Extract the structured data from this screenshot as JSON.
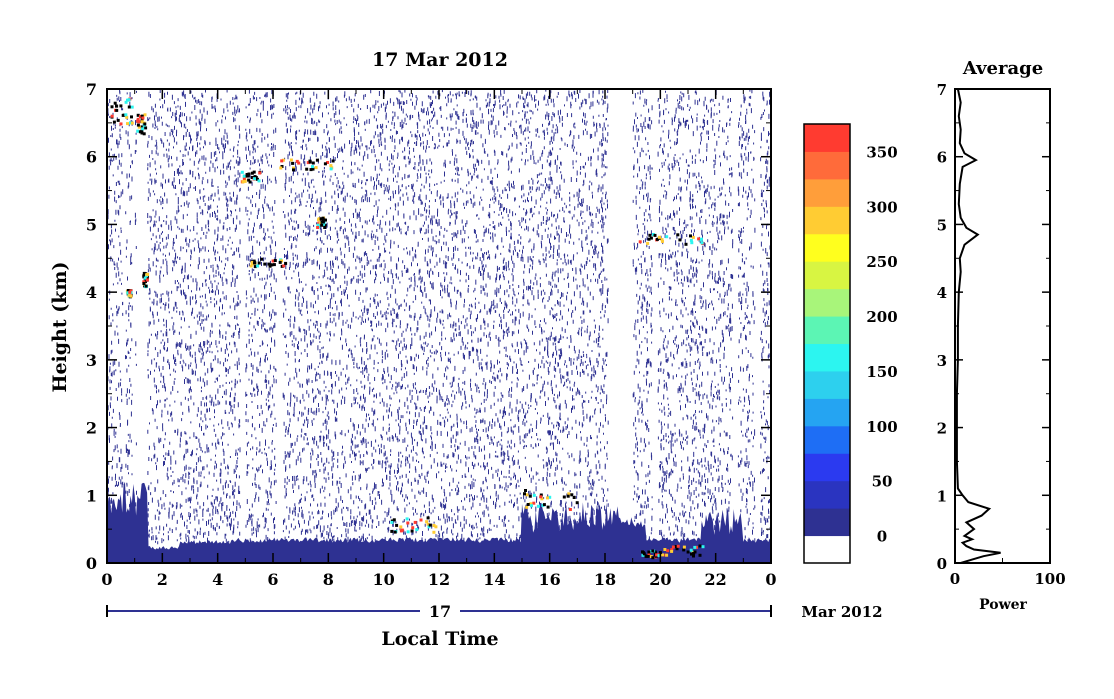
{
  "chart_data": [
    {
      "type": "heatmap",
      "title": "17 Mar 2012",
      "xlabel": "Local Time",
      "ylabel": "Height (km)",
      "xlim": [
        0,
        24
      ],
      "ylim": [
        0,
        7
      ],
      "x_ticks": [
        "0",
        "2",
        "4",
        "6",
        "8",
        "10",
        "12",
        "14",
        "16",
        "18",
        "20",
        "22",
        "0"
      ],
      "y_ticks": [
        "0",
        "1",
        "2",
        "3",
        "4",
        "5",
        "6",
        "7"
      ],
      "date_axis": {
        "day": "17",
        "month_year": "Mar 2012"
      },
      "colorbar": {
        "labels": [
          "0",
          "50",
          "100",
          "150",
          "200",
          "250",
          "300",
          "350"
        ],
        "colors": [
          "#ffffff",
          "#2e3192",
          "#2a34c0",
          "#2b3af0",
          "#1e6ef5",
          "#25a4f2",
          "#2dd0ee",
          "#2cf5f0",
          "#5cf5b4",
          "#a8f57a",
          "#d8f542",
          "#ffff1e",
          "#ffcc33",
          "#ff9e3a",
          "#ff6b3a",
          "#ff3b30"
        ],
        "range": [
          0,
          375
        ]
      },
      "features": [
        {
          "label": "surface layer",
          "x_range": [
            0,
            24
          ],
          "height_top": 0.3
        },
        {
          "label": "cloud layer",
          "x_range": [
            7.2,
            8.2
          ],
          "height": 5.95
        },
        {
          "label": "cloud layer",
          "x_range": [
            19,
            22
          ],
          "height": 4.85
        },
        {
          "label": "boundary layer top",
          "x_range": [
            15,
            17
          ],
          "height": 0.95
        }
      ]
    },
    {
      "type": "line",
      "title": "Average",
      "xlabel": "Power",
      "xlim": [
        0,
        100
      ],
      "ylim": [
        0,
        7
      ],
      "x_ticks": [
        "0",
        "100"
      ],
      "y_ticks": [
        "0",
        "1",
        "2",
        "3",
        "4",
        "5",
        "6",
        "7"
      ],
      "profile": [
        [
          6,
          0.0
        ],
        [
          18,
          0.05
        ],
        [
          30,
          0.1
        ],
        [
          48,
          0.15
        ],
        [
          20,
          0.2
        ],
        [
          12,
          0.25
        ],
        [
          8,
          0.3
        ],
        [
          18,
          0.35
        ],
        [
          10,
          0.4
        ],
        [
          20,
          0.5
        ],
        [
          12,
          0.6
        ],
        [
          28,
          0.7
        ],
        [
          36,
          0.8
        ],
        [
          14,
          0.9
        ],
        [
          8,
          1.0
        ],
        [
          3,
          1.1
        ],
        [
          2,
          1.5
        ],
        [
          2,
          2.0
        ],
        [
          2,
          2.5
        ],
        [
          3,
          3.0
        ],
        [
          3,
          3.5
        ],
        [
          4,
          4.0
        ],
        [
          6,
          4.3
        ],
        [
          5,
          4.5
        ],
        [
          10,
          4.7
        ],
        [
          24,
          4.85
        ],
        [
          12,
          4.95
        ],
        [
          6,
          5.1
        ],
        [
          4,
          5.3
        ],
        [
          5,
          5.6
        ],
        [
          8,
          5.85
        ],
        [
          22,
          5.95
        ],
        [
          10,
          6.05
        ],
        [
          5,
          6.2
        ],
        [
          6,
          6.4
        ],
        [
          4,
          6.6
        ],
        [
          6,
          6.8
        ],
        [
          3,
          7.0
        ]
      ]
    }
  ]
}
